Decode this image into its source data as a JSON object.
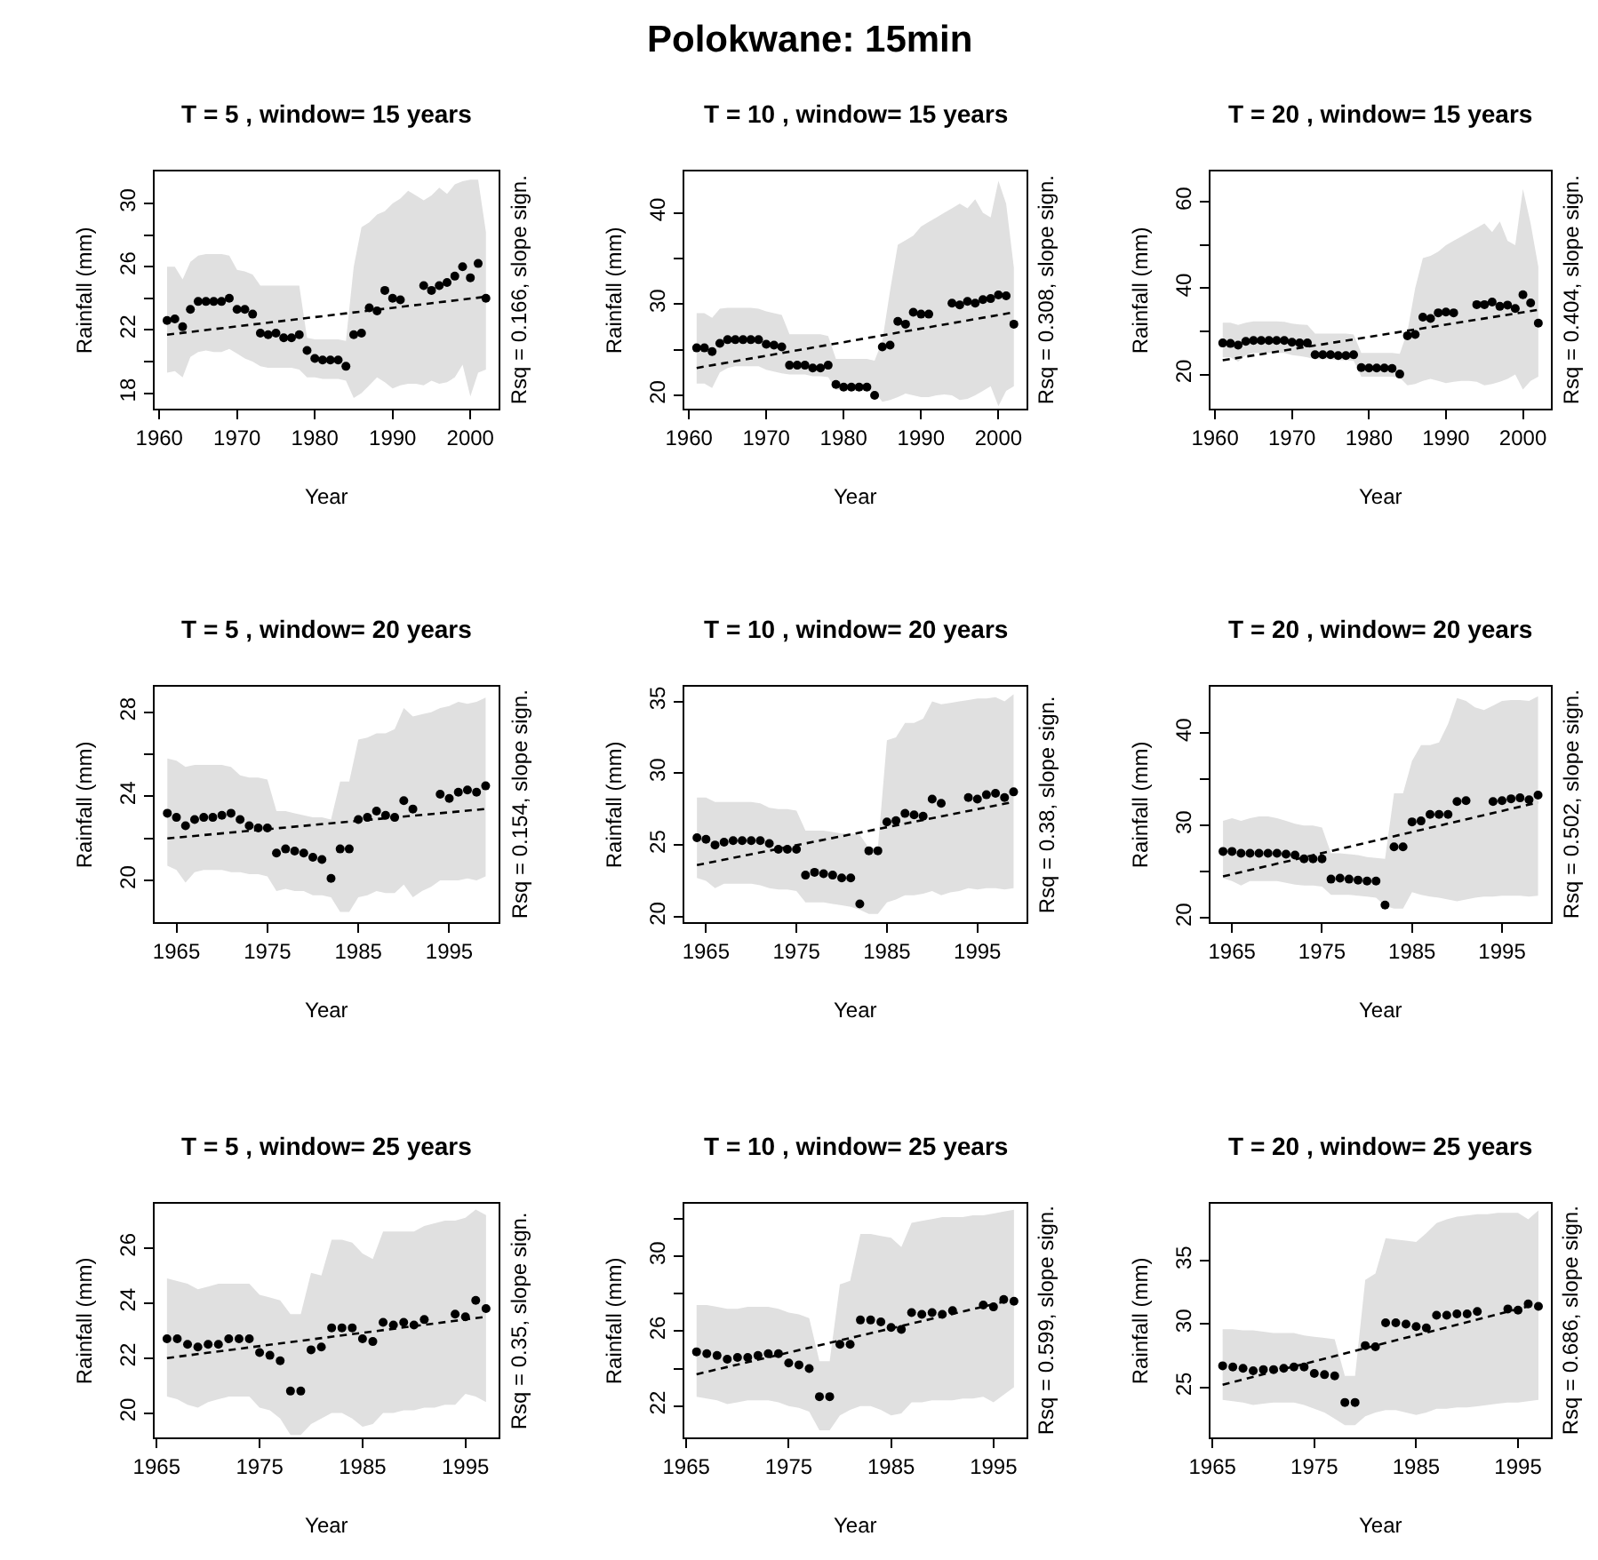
{
  "chart_data": [
    {
      "type": "other",
      "title": "Polokwane: 15min"
    },
    {
      "type": "scatter",
      "title": "T = 5 , window= 15 years",
      "xlabel": "Year",
      "ylabel": "Rainfall (mm)",
      "annotations": [
        "Rsq = 0.166, slope sign."
      ],
      "marker": "circle",
      "xlim": [
        1959.4,
        2003.6
      ],
      "xticks": [
        1960,
        1970,
        1980,
        1990,
        2000
      ],
      "ylim": [
        17,
        32
      ],
      "yticks": [
        18,
        {
          "value": 20,
          "label": null
        },
        22,
        {
          "value": 24,
          "label": null
        },
        26,
        {
          "value": 28,
          "label": null
        },
        30
      ],
      "series": [
        {
          "type": "scatter",
          "color": "#000000",
          "x": [
            1961,
            1962,
            1963,
            1964,
            1965,
            1966,
            1967,
            1968,
            1969,
            1970,
            1971,
            1972,
            1973,
            1974,
            1975,
            1976,
            1977,
            1978,
            1979,
            1980,
            1981,
            1982,
            1983,
            1984,
            1985,
            1986,
            1987,
            1988,
            1989,
            1990,
            1991,
            1992,
            1993,
            1994,
            1995,
            1996,
            1997,
            1998,
            1999,
            2000,
            2001,
            2002
          ],
          "values": [
            22.6,
            22.7,
            22.2,
            23.3,
            23.8,
            23.8,
            23.8,
            23.8,
            24.0,
            23.3,
            23.3,
            23.0,
            21.8,
            21.7,
            21.8,
            21.5,
            21.5,
            21.7,
            20.7,
            20.2,
            20.1,
            20.1,
            20.1,
            19.7,
            21.7,
            21.8,
            23.4,
            23.2,
            24.5,
            24.0,
            23.9,
            null,
            null,
            24.8,
            24.5,
            24.8,
            25.0,
            25.4,
            26.0,
            25.3,
            26.2,
            24.0
          ],
          "lower": [
            19.3,
            19.4,
            19.0,
            20.3,
            20.6,
            20.7,
            20.6,
            20.6,
            20.8,
            20.5,
            20.2,
            20.0,
            19.7,
            19.6,
            19.6,
            19.6,
            19.6,
            19.5,
            19.0,
            19.0,
            18.9,
            18.9,
            18.9,
            18.8,
            17.7,
            18.0,
            18.5,
            19.0,
            18.7,
            18.3,
            18.5,
            18.6,
            18.6,
            18.5,
            18.8,
            18.6,
            18.7,
            19.0,
            19.8,
            17.8,
            19.3,
            19.5
          ],
          "upper": [
            26.0,
            26.0,
            25.2,
            26.3,
            26.7,
            26.8,
            26.8,
            26.8,
            26.7,
            25.8,
            25.7,
            25.5,
            24.8,
            24.8,
            24.8,
            24.8,
            24.8,
            24.8,
            21.5,
            21.4,
            21.4,
            21.4,
            21.4,
            21.3,
            26.0,
            28.5,
            28.8,
            29.3,
            29.5,
            30.0,
            30.3,
            30.8,
            30.5,
            30.2,
            30.5,
            31.0,
            30.6,
            31.2,
            31.4,
            31.5,
            31.5,
            28.2
          ]
        },
        {
          "type": "line",
          "color": "#000000",
          "line_style": "dashed",
          "marker": "none",
          "x": [
            1961,
            2002
          ],
          "values": [
            21.7,
            24.1
          ]
        }
      ]
    },
    {
      "type": "scatter",
      "title": "T = 10 , window= 15 years",
      "xlabel": "Year",
      "ylabel": "Rainfall (mm)",
      "annotations": [
        "Rsq = 0.308, slope sign."
      ],
      "marker": "circle",
      "xlim": [
        1959.4,
        2003.6
      ],
      "xticks": [
        1960,
        1970,
        1980,
        1990,
        2000
      ],
      "ylim": [
        18.5,
        44.5
      ],
      "yticks": [
        20,
        {
          "value": 25,
          "label": null
        },
        30,
        {
          "value": 35,
          "label": null
        },
        40
      ],
      "series": [
        {
          "type": "scatter",
          "color": "#000000",
          "x": [
            1961,
            1962,
            1963,
            1964,
            1965,
            1966,
            1967,
            1968,
            1969,
            1970,
            1971,
            1972,
            1973,
            1974,
            1975,
            1976,
            1977,
            1978,
            1979,
            1980,
            1981,
            1982,
            1983,
            1984,
            1985,
            1986,
            1987,
            1988,
            1989,
            1990,
            1991,
            1992,
            1993,
            1994,
            1995,
            1996,
            1997,
            1998,
            1999,
            2000,
            2001,
            2002
          ],
          "values": [
            25.2,
            25.2,
            24.8,
            25.7,
            26.1,
            26.1,
            26.1,
            26.1,
            26.1,
            25.6,
            25.5,
            25.3,
            23.3,
            23.3,
            23.3,
            23.0,
            23.0,
            23.3,
            21.2,
            20.9,
            20.9,
            20.9,
            20.9,
            20.0,
            25.3,
            25.5,
            28.1,
            27.8,
            29.1,
            28.9,
            28.9,
            null,
            null,
            30.1,
            29.9,
            30.3,
            30.1,
            30.5,
            30.6,
            31.0,
            30.9,
            27.8
          ],
          "lower": [
            21.3,
            21.3,
            20.8,
            22.5,
            23.0,
            23.2,
            23.2,
            23.2,
            23.2,
            22.8,
            22.6,
            22.4,
            22.3,
            22.3,
            22.3,
            22.1,
            22.1,
            22.0,
            20.6,
            20.6,
            20.5,
            20.5,
            20.5,
            20.4,
            19.3,
            19.5,
            19.8,
            20.2,
            20.0,
            19.8,
            19.8,
            20.0,
            20.1,
            20.0,
            19.5,
            19.6,
            20.0,
            20.5,
            21.0,
            18.8,
            20.5,
            21.0
          ],
          "upper": [
            29.0,
            29.0,
            28.5,
            29.5,
            29.6,
            29.6,
            29.6,
            29.6,
            29.5,
            29.2,
            29.0,
            28.8,
            26.7,
            26.7,
            26.7,
            26.7,
            26.7,
            26.5,
            24.0,
            24.0,
            24.0,
            24.0,
            24.0,
            23.8,
            26.0,
            31.5,
            36.5,
            37.0,
            37.5,
            38.5,
            39.0,
            39.5,
            40.0,
            40.5,
            41.0,
            40.5,
            41.5,
            40.0,
            39.5,
            43.5,
            41.0,
            34.0
          ]
        },
        {
          "type": "line",
          "color": "#000000",
          "line_style": "dashed",
          "marker": "none",
          "x": [
            1961,
            2002
          ],
          "values": [
            23.0,
            29.1
          ]
        }
      ]
    },
    {
      "type": "scatter",
      "title": "T = 20 , window= 15 years",
      "xlabel": "Year",
      "ylabel": "Rainfall (mm)",
      "annotations": [
        "Rsq = 0.404, slope sign."
      ],
      "marker": "circle",
      "xlim": [
        1959.4,
        2003.6
      ],
      "xticks": [
        1960,
        1970,
        1980,
        1990,
        2000
      ],
      "ylim": [
        12,
        67
      ],
      "yticks": [
        20,
        {
          "value": 30,
          "label": null
        },
        40,
        {
          "value": 50,
          "label": null
        },
        60
      ],
      "series": [
        {
          "type": "scatter",
          "color": "#000000",
          "x": [
            1961,
            1962,
            1963,
            1964,
            1965,
            1966,
            1967,
            1968,
            1969,
            1970,
            1971,
            1972,
            1973,
            1974,
            1975,
            1976,
            1977,
            1978,
            1979,
            1980,
            1981,
            1982,
            1983,
            1984,
            1985,
            1986,
            1987,
            1988,
            1989,
            1990,
            1991,
            1992,
            1993,
            1994,
            1995,
            1996,
            1997,
            1998,
            1999,
            2000,
            2001,
            2002
          ],
          "values": [
            27.3,
            27.2,
            26.8,
            27.7,
            27.9,
            27.9,
            27.9,
            27.9,
            27.9,
            27.5,
            27.3,
            27.3,
            24.6,
            24.6,
            24.6,
            24.4,
            24.4,
            24.6,
            21.6,
            21.5,
            21.5,
            21.5,
            21.4,
            20.1,
            29.0,
            29.3,
            33.3,
            33.0,
            34.3,
            34.5,
            34.3,
            null,
            null,
            36.2,
            36.2,
            36.8,
            35.8,
            36.1,
            35.3,
            38.5,
            36.6,
            31.9
          ],
          "lower": [
            24.0,
            24.0,
            23.0,
            24.5,
            25.0,
            25.0,
            25.0,
            25.0,
            25.0,
            24.5,
            24.3,
            24.0,
            23.5,
            23.5,
            23.5,
            23.3,
            23.3,
            23.2,
            19.5,
            19.5,
            19.5,
            19.5,
            19.5,
            19.3,
            17.5,
            17.8,
            18.5,
            19.0,
            18.5,
            18.0,
            18.3,
            18.5,
            18.5,
            18.3,
            17.5,
            17.8,
            18.3,
            19.0,
            20.0,
            16.5,
            18.5,
            19.5
          ],
          "upper": [
            32.0,
            32.0,
            31.5,
            32.0,
            32.3,
            32.3,
            32.3,
            32.3,
            32.2,
            31.8,
            31.6,
            31.5,
            29.5,
            29.5,
            29.5,
            29.5,
            29.5,
            29.3,
            25.0,
            25.0,
            25.0,
            25.0,
            25.0,
            24.8,
            30.0,
            40.0,
            47.0,
            47.5,
            48.5,
            50.0,
            51.0,
            52.0,
            53.0,
            54.0,
            55.0,
            53.0,
            55.5,
            51.0,
            50.0,
            63.0,
            55.0,
            45.0
          ]
        },
        {
          "type": "line",
          "color": "#000000",
          "line_style": "dashed",
          "marker": "none",
          "x": [
            1961,
            2002
          ],
          "values": [
            23.3,
            35.0
          ]
        }
      ]
    },
    {
      "type": "scatter",
      "title": "T = 5 , window= 20 years",
      "xlabel": "Year",
      "ylabel": "Rainfall (mm)",
      "annotations": [
        "Rsq = 0.154, slope sign."
      ],
      "marker": "circle",
      "xlim": [
        1962.6,
        2000.4
      ],
      "xticks": [
        1965,
        1975,
        1985,
        1995
      ],
      "ylim": [
        18,
        29.2
      ],
      "yticks": [
        20,
        {
          "value": 22,
          "label": null
        },
        24,
        {
          "value": 26,
          "label": null
        },
        28
      ],
      "series": [
        {
          "type": "scatter",
          "color": "#000000",
          "x": [
            1964,
            1965,
            1966,
            1967,
            1968,
            1969,
            1970,
            1971,
            1972,
            1973,
            1974,
            1975,
            1976,
            1977,
            1978,
            1979,
            1980,
            1981,
            1982,
            1983,
            1984,
            1985,
            1986,
            1987,
            1988,
            1989,
            1990,
            1991,
            1992,
            1993,
            1994,
            1995,
            1996,
            1997,
            1998,
            1999
          ],
          "values": [
            23.2,
            23.0,
            22.6,
            22.9,
            23.0,
            23.0,
            23.1,
            23.2,
            22.9,
            22.6,
            22.5,
            22.5,
            21.3,
            21.5,
            21.4,
            21.3,
            21.1,
            21.0,
            20.1,
            21.5,
            21.5,
            22.9,
            23.0,
            23.3,
            23.1,
            23.0,
            23.8,
            23.4,
            null,
            null,
            24.1,
            23.9,
            24.2,
            24.3,
            24.2,
            24.5
          ],
          "lower": [
            20.7,
            20.5,
            19.9,
            20.4,
            20.5,
            20.5,
            20.5,
            20.4,
            20.4,
            20.3,
            20.3,
            20.2,
            19.5,
            19.6,
            19.5,
            19.5,
            19.3,
            19.3,
            19.2,
            18.5,
            18.5,
            19.2,
            19.3,
            19.5,
            19.4,
            19.4,
            19.8,
            19.2,
            19.5,
            19.7,
            20.0,
            20.0,
            20.0,
            20.1,
            20.0,
            20.2
          ],
          "upper": [
            25.8,
            25.7,
            25.4,
            25.5,
            25.5,
            25.5,
            25.5,
            25.4,
            25.0,
            24.9,
            24.9,
            24.8,
            23.3,
            23.3,
            23.2,
            23.1,
            23.0,
            23.0,
            22.9,
            24.7,
            24.7,
            26.7,
            26.8,
            27.0,
            27.0,
            27.2,
            28.2,
            27.8,
            27.9,
            28.0,
            28.2,
            28.3,
            28.5,
            28.4,
            28.5,
            28.7
          ]
        },
        {
          "type": "line",
          "color": "#000000",
          "line_style": "dashed",
          "marker": "none",
          "x": [
            1964,
            1999
          ],
          "values": [
            22.0,
            23.4
          ]
        }
      ]
    },
    {
      "type": "scatter",
      "title": "T = 10 , window= 20 years",
      "xlabel": "Year",
      "ylabel": "Rainfall (mm)",
      "annotations": [
        "Rsq = 0.38, slope sign."
      ],
      "marker": "circle",
      "xlim": [
        1962.6,
        2000.4
      ],
      "xticks": [
        1965,
        1975,
        1985,
        1995
      ],
      "ylim": [
        19.6,
        36
      ],
      "yticks": [
        20,
        25,
        30,
        35
      ],
      "series": [
        {
          "type": "scatter",
          "color": "#000000",
          "x": [
            1964,
            1965,
            1966,
            1967,
            1968,
            1969,
            1970,
            1971,
            1972,
            1973,
            1974,
            1975,
            1976,
            1977,
            1978,
            1979,
            1980,
            1981,
            1982,
            1983,
            1984,
            1985,
            1986,
            1987,
            1988,
            1989,
            1990,
            1991,
            1992,
            1993,
            1994,
            1995,
            1996,
            1997,
            1998,
            1999
          ],
          "values": [
            25.5,
            25.4,
            25.0,
            25.2,
            25.3,
            25.3,
            25.3,
            25.3,
            25.1,
            24.7,
            24.7,
            24.7,
            22.9,
            23.1,
            23.0,
            22.9,
            22.7,
            22.7,
            20.9,
            24.6,
            24.6,
            26.6,
            26.7,
            27.2,
            27.1,
            27.0,
            28.2,
            27.9,
            null,
            null,
            28.3,
            28.2,
            28.5,
            28.6,
            28.3,
            28.7
          ],
          "lower": [
            22.7,
            22.5,
            22.0,
            22.3,
            22.3,
            22.3,
            22.3,
            22.2,
            22.0,
            21.9,
            21.9,
            21.8,
            21.0,
            21.0,
            21.0,
            20.9,
            20.8,
            20.7,
            20.5,
            20.2,
            20.2,
            21.0,
            21.2,
            21.5,
            21.5,
            21.6,
            21.8,
            21.5,
            21.7,
            21.8,
            22.0,
            21.9,
            22.0,
            22.0,
            21.9,
            22.0
          ],
          "upper": [
            28.3,
            28.3,
            28.0,
            28.0,
            28.0,
            28.0,
            28.0,
            27.9,
            27.6,
            27.5,
            27.5,
            27.4,
            26.0,
            26.0,
            26.0,
            25.9,
            25.8,
            25.8,
            25.7,
            24.8,
            24.8,
            32.3,
            32.5,
            33.5,
            33.5,
            33.8,
            35.0,
            34.8,
            34.9,
            35.0,
            35.1,
            35.2,
            35.2,
            35.3,
            35.0,
            35.5
          ]
        },
        {
          "type": "line",
          "color": "#000000",
          "line_style": "dashed",
          "marker": "none",
          "x": [
            1964,
            1999
          ],
          "values": [
            23.6,
            28.0
          ]
        }
      ]
    },
    {
      "type": "scatter",
      "title": "T = 20 , window= 20 years",
      "xlabel": "Year",
      "ylabel": "Rainfall (mm)",
      "annotations": [
        "Rsq = 0.502, slope sign."
      ],
      "marker": "circle",
      "xlim": [
        1962.6,
        2000.4
      ],
      "xticks": [
        1965,
        1975,
        1985,
        1995
      ],
      "ylim": [
        19.5,
        45
      ],
      "yticks": [
        20,
        {
          "value": 25,
          "label": null
        },
        30,
        {
          "value": 35,
          "label": null
        },
        40
      ],
      "series": [
        {
          "type": "scatter",
          "color": "#000000",
          "x": [
            1964,
            1965,
            1966,
            1967,
            1968,
            1969,
            1970,
            1971,
            1972,
            1973,
            1974,
            1975,
            1976,
            1977,
            1978,
            1979,
            1980,
            1981,
            1982,
            1983,
            1984,
            1985,
            1986,
            1987,
            1988,
            1989,
            1990,
            1991,
            1992,
            1993,
            1994,
            1995,
            1996,
            1997,
            1998,
            1999
          ],
          "values": [
            27.2,
            27.2,
            27.0,
            27.0,
            27.0,
            27.0,
            27.0,
            26.9,
            26.8,
            26.4,
            26.4,
            26.4,
            24.2,
            24.3,
            24.2,
            24.1,
            24.0,
            24.0,
            21.4,
            27.7,
            27.7,
            30.4,
            30.5,
            31.2,
            31.2,
            31.2,
            32.6,
            32.7,
            null,
            null,
            32.6,
            32.7,
            32.9,
            33.0,
            32.8,
            33.3
          ],
          "lower": [
            24.3,
            24.0,
            23.5,
            24.0,
            24.0,
            24.0,
            24.0,
            23.8,
            23.6,
            23.5,
            23.5,
            23.4,
            22.5,
            22.5,
            22.5,
            22.4,
            22.3,
            22.2,
            21.3,
            21.0,
            21.0,
            22.8,
            22.5,
            22.3,
            22.2,
            22.0,
            21.8,
            22.0,
            22.2,
            22.3,
            22.3,
            22.4,
            22.4,
            22.4,
            22.3,
            22.4
          ],
          "upper": [
            30.5,
            30.8,
            30.5,
            30.8,
            31.0,
            31.0,
            30.8,
            30.5,
            30.2,
            30.0,
            30.0,
            29.8,
            27.0,
            27.0,
            26.9,
            26.8,
            26.6,
            26.5,
            26.4,
            33.5,
            33.5,
            37.0,
            38.7,
            38.7,
            39.0,
            41.0,
            43.8,
            43.5,
            42.8,
            42.5,
            43.0,
            43.5,
            43.6,
            43.6,
            43.5,
            44.0
          ]
        },
        {
          "type": "line",
          "color": "#000000",
          "line_style": "dashed",
          "marker": "none",
          "x": [
            1964,
            1999
          ],
          "values": [
            24.5,
            32.5
          ]
        }
      ]
    },
    {
      "type": "scatter",
      "title": "T = 5 , window= 25 years",
      "xlabel": "Year",
      "ylabel": "Rainfall (mm)",
      "annotations": [
        "Rsq = 0.35, slope sign."
      ],
      "marker": "circle",
      "xlim": [
        1964.8,
        1998.2
      ],
      "xticks": [
        1965,
        1975,
        1985,
        1995
      ],
      "ylim": [
        19.1,
        27.6
      ],
      "yticks": [
        20,
        22,
        24,
        26
      ],
      "series": [
        {
          "type": "scatter",
          "color": "#000000",
          "x": [
            1966,
            1967,
            1968,
            1969,
            1970,
            1971,
            1972,
            1973,
            1974,
            1975,
            1976,
            1977,
            1978,
            1979,
            1980,
            1981,
            1982,
            1983,
            1984,
            1985,
            1986,
            1987,
            1988,
            1989,
            1990,
            1991,
            1992,
            1993,
            1994,
            1995,
            1996,
            1997
          ],
          "values": [
            22.7,
            22.7,
            22.5,
            22.4,
            22.5,
            22.5,
            22.7,
            22.7,
            22.7,
            22.2,
            22.1,
            21.9,
            20.8,
            20.8,
            22.3,
            22.4,
            23.1,
            23.1,
            23.1,
            22.7,
            22.6,
            23.3,
            23.2,
            23.3,
            23.2,
            23.4,
            null,
            null,
            23.6,
            23.5,
            24.1,
            23.8
          ],
          "lower": [
            20.6,
            20.5,
            20.3,
            20.2,
            20.4,
            20.5,
            20.6,
            20.6,
            20.6,
            20.2,
            20.1,
            19.8,
            19.2,
            19.2,
            19.6,
            19.8,
            20.0,
            20.0,
            19.8,
            19.5,
            19.6,
            20.0,
            20.0,
            20.1,
            20.1,
            20.2,
            20.2,
            20.3,
            20.3,
            20.7,
            20.6,
            20.4
          ],
          "upper": [
            24.9,
            24.8,
            24.7,
            24.5,
            24.6,
            24.7,
            24.7,
            24.7,
            24.7,
            24.3,
            24.2,
            24.1,
            23.6,
            23.6,
            25.1,
            25.0,
            26.3,
            26.3,
            26.2,
            25.8,
            25.6,
            26.6,
            26.6,
            26.6,
            26.6,
            26.8,
            26.9,
            27.0,
            27.0,
            27.1,
            27.4,
            27.2
          ]
        },
        {
          "type": "line",
          "color": "#000000",
          "line_style": "dashed",
          "marker": "none",
          "x": [
            1966,
            1997
          ],
          "values": [
            22.0,
            23.5
          ]
        }
      ]
    },
    {
      "type": "scatter",
      "title": "T = 10 , window= 25 years",
      "xlabel": "Year",
      "ylabel": "Rainfall (mm)",
      "annotations": [
        "Rsq = 0.599, slope sign."
      ],
      "marker": "circle",
      "xlim": [
        1964.8,
        1998.2
      ],
      "xticks": [
        1965,
        1975,
        1985,
        1995
      ],
      "ylim": [
        20.3,
        32.8
      ],
      "yticks": [
        22,
        {
          "value": 24,
          "label": null
        },
        26,
        {
          "value": 28,
          "label": null
        },
        30,
        {
          "value": 32,
          "label": null
        }
      ],
      "series": [
        {
          "type": "scatter",
          "color": "#000000",
          "x": [
            1966,
            1967,
            1968,
            1969,
            1970,
            1971,
            1972,
            1973,
            1974,
            1975,
            1976,
            1977,
            1978,
            1979,
            1980,
            1981,
            1982,
            1983,
            1984,
            1985,
            1986,
            1987,
            1988,
            1989,
            1990,
            1991,
            1992,
            1993,
            1994,
            1995,
            1996,
            1997
          ],
          "values": [
            24.9,
            24.8,
            24.7,
            24.5,
            24.6,
            24.6,
            24.7,
            24.8,
            24.8,
            24.3,
            24.2,
            24.0,
            22.5,
            22.5,
            25.3,
            25.3,
            26.6,
            26.6,
            26.5,
            26.2,
            26.1,
            27.0,
            26.9,
            27.0,
            26.9,
            27.1,
            null,
            null,
            27.4,
            27.3,
            27.7,
            27.6
          ],
          "lower": [
            22.5,
            22.4,
            22.3,
            22.1,
            22.2,
            22.3,
            22.3,
            22.3,
            22.2,
            22.0,
            21.9,
            21.7,
            20.7,
            20.7,
            21.5,
            21.8,
            22.0,
            22.0,
            21.8,
            21.5,
            21.6,
            22.2,
            22.2,
            22.3,
            22.3,
            22.3,
            22.4,
            22.4,
            22.5,
            22.2,
            22.6,
            23.0
          ],
          "upper": [
            27.4,
            27.4,
            27.3,
            27.2,
            27.2,
            27.3,
            27.3,
            27.3,
            27.2,
            27.0,
            26.9,
            26.7,
            24.4,
            24.4,
            28.5,
            28.7,
            31.2,
            31.2,
            31.1,
            31.0,
            30.5,
            31.8,
            31.9,
            32.0,
            32.1,
            32.1,
            32.1,
            32.2,
            32.2,
            32.3,
            32.4,
            32.5
          ]
        },
        {
          "type": "line",
          "color": "#000000",
          "line_style": "dashed",
          "marker": "none",
          "x": [
            1966,
            1997
          ],
          "values": [
            23.7,
            27.7
          ]
        }
      ]
    },
    {
      "type": "scatter",
      "title": "T = 20 , window= 25 years",
      "xlabel": "Year",
      "ylabel": "Rainfall (mm)",
      "annotations": [
        "Rsq = 0.686, slope sign."
      ],
      "marker": "circle",
      "xlim": [
        1964.8,
        1998.2
      ],
      "xticks": [
        1965,
        1975,
        1985,
        1995
      ],
      "ylim": [
        21,
        39.5
      ],
      "yticks": [
        25,
        30,
        35
      ],
      "series": [
        {
          "type": "scatter",
          "color": "#000000",
          "x": [
            1966,
            1967,
            1968,
            1969,
            1970,
            1971,
            1972,
            1973,
            1974,
            1975,
            1976,
            1977,
            1978,
            1979,
            1980,
            1981,
            1982,
            1983,
            1984,
            1985,
            1986,
            1987,
            1988,
            1989,
            1990,
            1991,
            1992,
            1993,
            1994,
            1995,
            1996,
            1997
          ],
          "values": [
            26.7,
            26.6,
            26.5,
            26.3,
            26.4,
            26.4,
            26.5,
            26.6,
            26.6,
            26.1,
            26.0,
            25.9,
            23.8,
            23.8,
            28.3,
            28.2,
            30.1,
            30.1,
            30.0,
            29.8,
            29.7,
            30.7,
            30.7,
            30.8,
            30.8,
            31.0,
            null,
            null,
            31.2,
            31.1,
            31.6,
            31.4
          ],
          "lower": [
            24.0,
            23.9,
            23.8,
            23.6,
            23.7,
            23.8,
            23.8,
            23.8,
            23.6,
            23.3,
            23.0,
            22.5,
            22.0,
            22.0,
            22.7,
            23.0,
            23.2,
            23.2,
            23.0,
            22.8,
            23.0,
            23.3,
            23.3,
            23.4,
            23.4,
            23.5,
            23.6,
            23.7,
            23.8,
            23.8,
            23.9,
            24.0
          ],
          "upper": [
            29.6,
            29.6,
            29.5,
            29.5,
            29.4,
            29.3,
            29.3,
            29.3,
            29.1,
            29.0,
            28.9,
            28.8,
            25.9,
            25.9,
            33.5,
            34.0,
            36.8,
            36.7,
            36.6,
            36.5,
            37.2,
            38.0,
            38.3,
            38.5,
            38.6,
            38.7,
            38.7,
            38.8,
            38.8,
            38.8,
            38.3,
            39.0
          ]
        },
        {
          "type": "line",
          "color": "#000000",
          "line_style": "dashed",
          "marker": "none",
          "x": [
            1966,
            1997
          ],
          "values": [
            25.2,
            31.6
          ]
        }
      ]
    }
  ]
}
